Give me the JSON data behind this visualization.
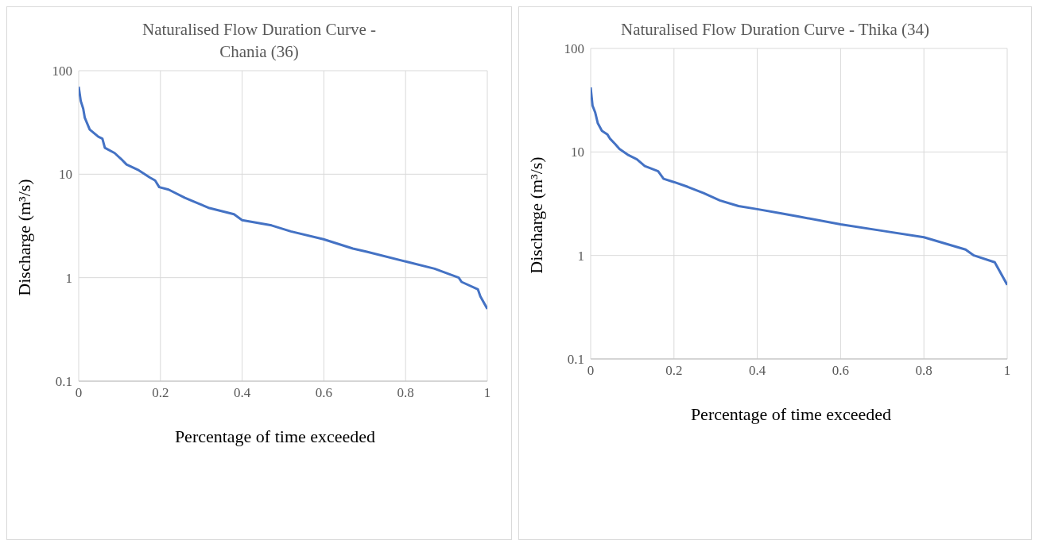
{
  "chart_data": [
    {
      "type": "line",
      "title": "Naturalised Flow Duration Curve - Chania (36)",
      "xlabel": "Percentage of time exceeded",
      "ylabel": "Discharge (m³/s)",
      "log": "y",
      "grid": true,
      "xlim": [
        0,
        1
      ],
      "xticks": [
        0,
        0.2,
        0.4,
        0.6,
        0.8,
        1
      ],
      "ylim": [
        0.1,
        100
      ],
      "yticks": [
        0.1,
        1,
        10,
        100
      ],
      "series": [
        {
          "color": "#4472c4",
          "x": [
            0,
            0.005,
            0.011,
            0.015,
            0.027,
            0.048,
            0.058,
            0.064,
            0.088,
            0.104,
            0.117,
            0.147,
            0.174,
            0.187,
            0.197,
            0.22,
            0.26,
            0.32,
            0.38,
            0.4,
            0.472,
            0.519,
            0.599,
            0.671,
            0.705,
            0.804,
            0.871,
            0.93,
            0.937,
            0.977,
            0.983,
            1
          ],
          "values": [
            70,
            51,
            43,
            35,
            27,
            23,
            22,
            18,
            16,
            14,
            12.4,
            10.9,
            9.3,
            8.7,
            7.5,
            7.1,
            5.9,
            4.7,
            4.1,
            3.6,
            3.2,
            2.8,
            2.35,
            1.91,
            1.78,
            1.42,
            1.22,
            1.0,
            0.91,
            0.77,
            0.66,
            0.5
          ]
        }
      ]
    },
    {
      "type": "line",
      "title": "Naturalised Flow Duration Curve - Thika (34)",
      "xlabel": "Percentage of time exceeded",
      "ylabel": "Discharge (m³/s)",
      "log": "y",
      "grid": true,
      "xlim": [
        0,
        1
      ],
      "xticks": [
        0,
        0.2,
        0.4,
        0.6,
        0.8,
        1
      ],
      "ylim": [
        0.1,
        100
      ],
      "yticks": [
        0.1,
        1,
        10,
        100
      ],
      "series": [
        {
          "color": "#4472c4",
          "x": [
            0,
            0.0045,
            0.011,
            0.017,
            0.027,
            0.04,
            0.046,
            0.059,
            0.069,
            0.091,
            0.111,
            0.13,
            0.162,
            0.175,
            0.201,
            0.233,
            0.271,
            0.31,
            0.355,
            0.4,
            0.458,
            0.5,
            0.6,
            0.7,
            0.8,
            0.9,
            0.92,
            0.97,
            1
          ],
          "values": [
            42,
            28,
            24,
            19,
            16,
            14.8,
            13.5,
            11.9,
            10.7,
            9.3,
            8.5,
            7.3,
            6.5,
            5.5,
            5.1,
            4.6,
            4.0,
            3.4,
            3.0,
            2.8,
            2.55,
            2.37,
            2.0,
            1.73,
            1.5,
            1.14,
            1.0,
            0.86,
            0.52
          ]
        }
      ]
    }
  ]
}
